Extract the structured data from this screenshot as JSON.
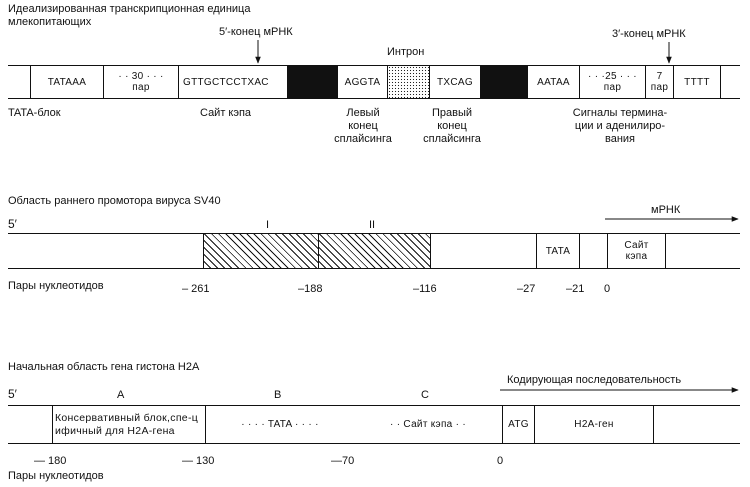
{
  "d1": {
    "title_line1": "Идеализированная  транскрипционная единица",
    "title_line2": "млекопитающих",
    "five_end": "5′-конец  мРНК",
    "intron": "Интрон",
    "three_end": "3′-конец мРНК",
    "cells": {
      "tataaa": "TATAAA",
      "gap30": "· · 30 · · ·",
      "gap30_unit": "пар",
      "cap_seq": "GTTGCTCCTXAC",
      "aggta": "AGGTA",
      "txcag": "TXCAG",
      "aataa": "AATAA",
      "gap25": "· · ·25 · · ·",
      "gap25_unit": "пар",
      "seven": "7",
      "seven_unit": "пар",
      "tttt": "TTTT"
    },
    "labels": {
      "tata_block": "TATA-блок",
      "cap_site": "Сайт кэпа",
      "left_splice": [
        "Левый",
        "конец",
        "сплайсинга"
      ],
      "right_splice": [
        "Правый",
        "конец",
        "сплайсинга"
      ],
      "term_signals": [
        "Сигналы термина-",
        "ции и аденилиро-",
        "вания"
      ]
    }
  },
  "d2": {
    "title": "Область раннего промотора вируса SV40",
    "five": "5′",
    "mrna": "мРНК",
    "region_i": "I",
    "region_ii": "II",
    "tata": "TATA",
    "cap": "Сайт кэпа",
    "axis_label": "Пары  нуклеотидов",
    "ticks": [
      "– 261",
      "–188",
      "–116",
      "–27",
      "–21",
      "0"
    ]
  },
  "d3": {
    "title": "Начальная область гена гистона H2A",
    "five": "5′",
    "region_a": "A",
    "region_b": "B",
    "region_c": "C",
    "coding": "Кодирующая  последовательность",
    "conserved": "Консервативный блок,спе-цифичный для H2A-гена",
    "tata": "· · · · TATA · · · ·",
    "cap": "· · Сайт кэпа · ·",
    "atg": "ATG",
    "gene": "H2A-ген",
    "axis_label": "Пары нуклеотидов",
    "ticks": [
      "— 180",
      "— 130",
      "—70",
      "0"
    ]
  }
}
